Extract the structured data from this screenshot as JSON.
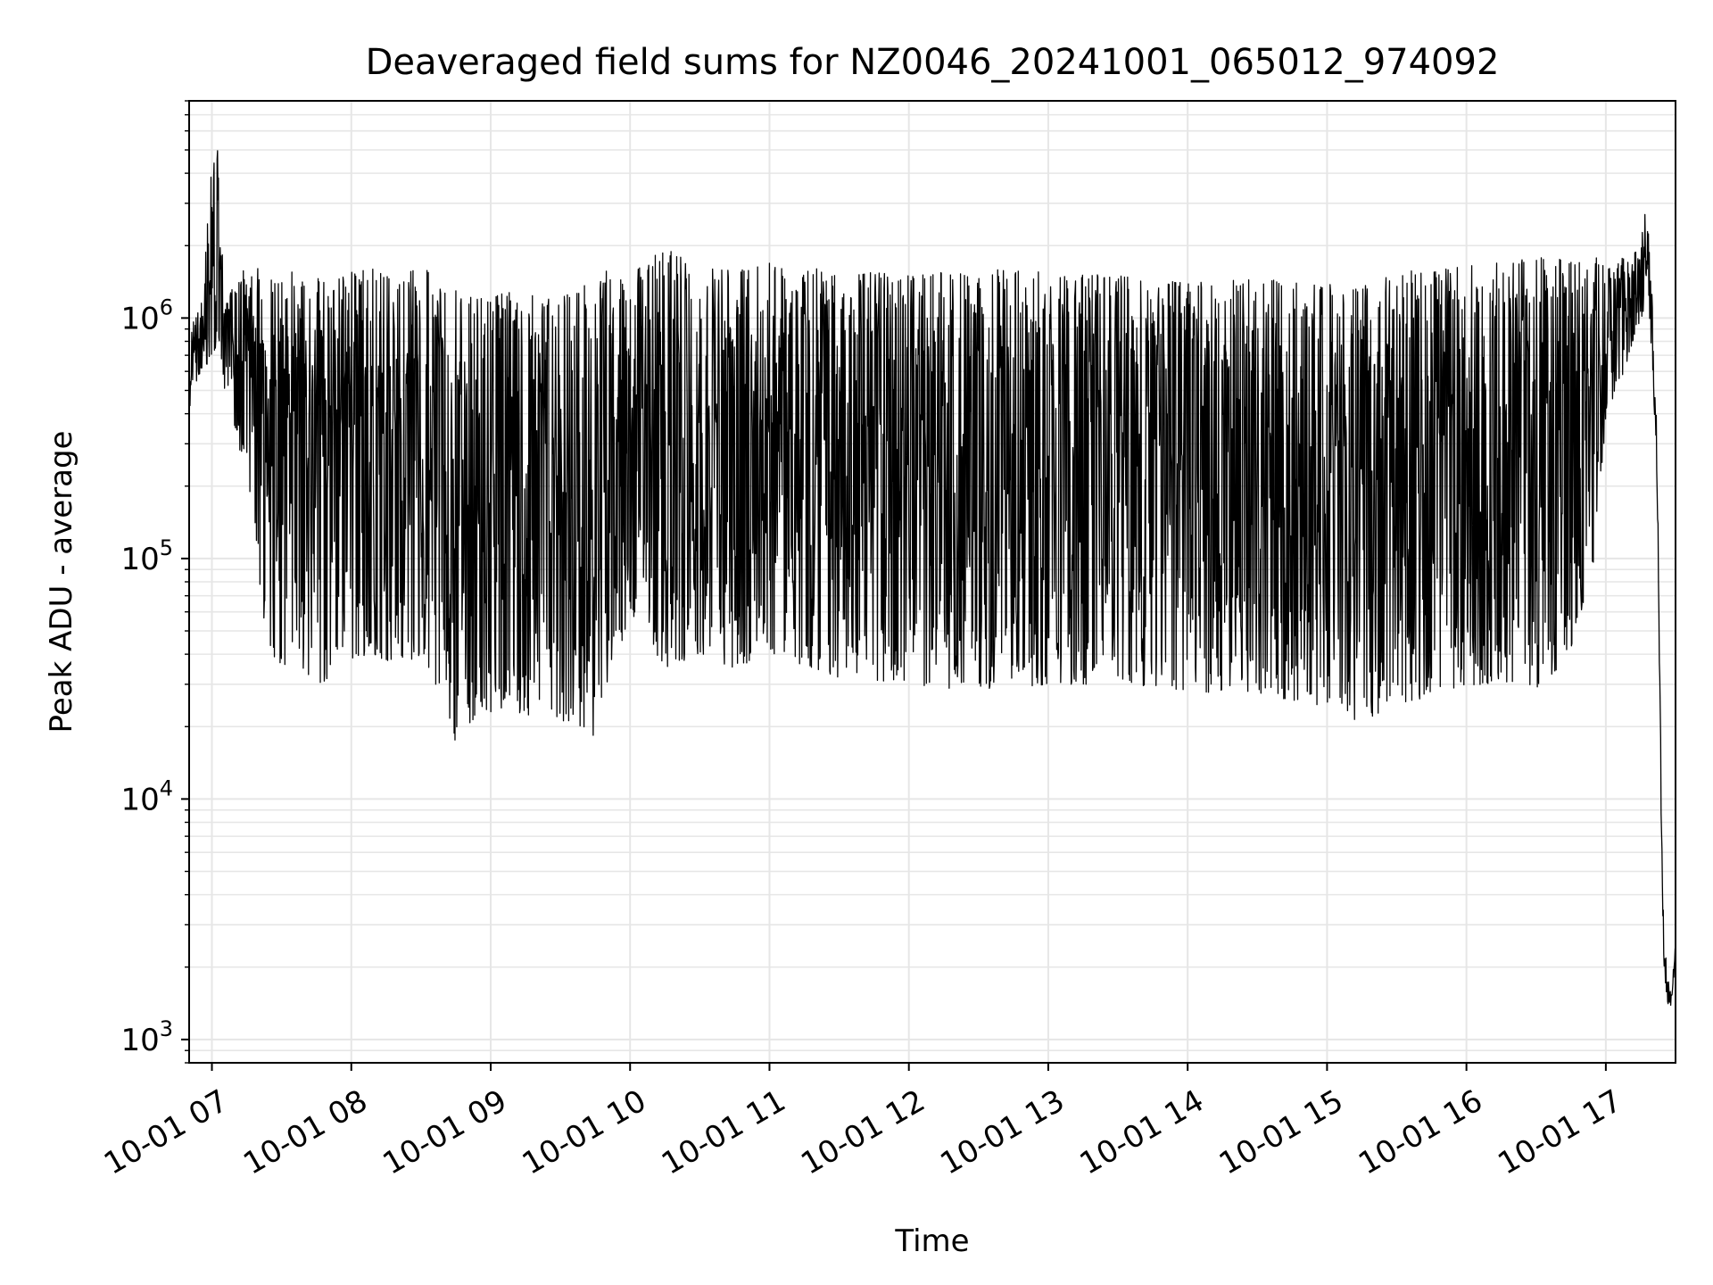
{
  "chart_data": {
    "type": "line",
    "title": "Deaveraged field sums for NZ0046_20241001_065012_974092",
    "xlabel": "Time",
    "ylabel": "Peak ADU - average",
    "x_axis": {
      "type": "time",
      "range": [
        "2024-10-01T06:50:12",
        "2024-10-01T17:30:00"
      ],
      "tick_labels": [
        "10-01 07",
        "10-01 08",
        "10-01 09",
        "10-01 10",
        "10-01 11",
        "10-01 12",
        "10-01 13",
        "10-01 14",
        "10-01 15",
        "10-01 16",
        "10-01 17"
      ]
    },
    "y_axis": {
      "scale": "log",
      "range": [
        800,
        8000000
      ],
      "tick_labels": [
        {
          "value": 1000,
          "base": "10",
          "exponent": "3"
        },
        {
          "value": 10000,
          "base": "10",
          "exponent": "4"
        },
        {
          "value": 100000,
          "base": "10",
          "exponent": "5"
        },
        {
          "value": 1000000,
          "base": "10",
          "exponent": "6"
        }
      ]
    },
    "grid": true,
    "line_color": "#000000",
    "series": [
      {
        "x": [
          "06:50",
          "06:55",
          "07:00",
          "07:03",
          "07:05",
          "07:10",
          "07:15",
          "07:20",
          "07:25",
          "07:30",
          "07:35",
          "07:40",
          "07:45",
          "07:50",
          "07:55",
          "08:00",
          "08:10",
          "08:20",
          "08:30",
          "08:40",
          "08:45",
          "08:50",
          "08:55",
          "09:00",
          "09:10",
          "09:20",
          "09:30",
          "09:40",
          "09:45",
          "10:00",
          "10:15",
          "10:30",
          "10:45",
          "11:00",
          "11:30",
          "12:00",
          "12:30",
          "13:00",
          "13:30",
          "14:00",
          "14:30",
          "15:00",
          "15:15",
          "15:30",
          "16:00",
          "16:15",
          "16:30",
          "16:45",
          "16:55",
          "17:00",
          "17:05",
          "17:10",
          "17:15",
          "17:18",
          "17:20",
          "17:22",
          "17:24",
          "17:25",
          "17:27",
          "17:28",
          "17:30"
        ],
        "upper": [
          900000,
          1100000,
          4300000,
          5200000,
          1400000,
          1300000,
          1700000,
          1600000,
          1500000,
          1400000,
          1600000,
          1450000,
          1500000,
          1400000,
          1500000,
          1550000,
          1600000,
          1400000,
          1700000,
          1350000,
          1300000,
          1250000,
          1200000,
          1250000,
          1300000,
          1300000,
          1200000,
          1400000,
          1600000,
          1500000,
          2000000,
          1600000,
          1600000,
          1700000,
          1600000,
          1500000,
          1600000,
          1550000,
          1500000,
          1400000,
          1450000,
          1400000,
          1450000,
          1550000,
          1650000,
          1700000,
          1800000,
          1750000,
          1800000,
          1700000,
          1750000,
          1800000,
          2000000,
          3700000,
          1500000,
          400000,
          10000,
          3000,
          1900,
          1600,
          2900
        ],
        "lower": [
          380000,
          550000,
          700000,
          800000,
          500000,
          350000,
          180000,
          75000,
          40000,
          35000,
          38000,
          32000,
          28000,
          32000,
          40000,
          38000,
          40000,
          35000,
          40000,
          25000,
          17000,
          20000,
          23000,
          22000,
          23000,
          22000,
          21000,
          20000,
          18000,
          60000,
          35000,
          40000,
          35000,
          40000,
          32000,
          30000,
          28000,
          30000,
          30000,
          28000,
          27000,
          24000,
          20000,
          25000,
          28000,
          30000,
          28000,
          40000,
          100000,
          380000,
          500000,
          700000,
          1000000,
          1100000,
          500000,
          180000,
          5000,
          1500,
          1200,
          1300,
          2000
        ]
      }
    ]
  }
}
